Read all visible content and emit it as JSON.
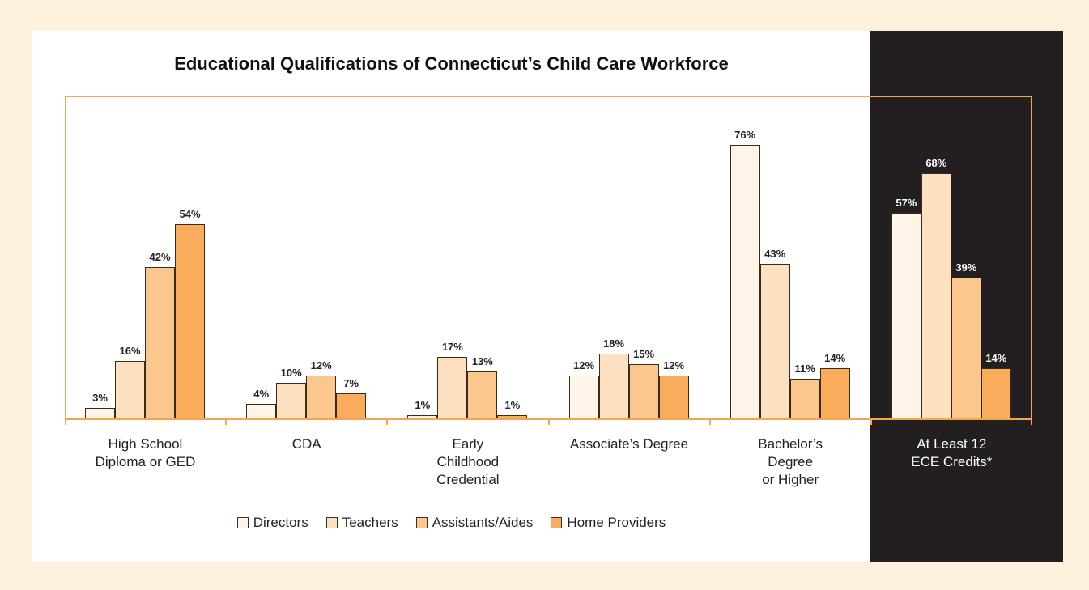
{
  "chart_data": {
    "type": "bar",
    "title": "Educational Qualifications of Connecticut’s Child Care Workforce",
    "categories": [
      "High School\nDiploma or GED",
      "CDA",
      "Early\nChildhood\nCredential",
      "Associate’s Degree",
      "Bachelor’s\nDegree\nor Higher",
      "At Least 12\nECE Credits*"
    ],
    "series": [
      {
        "name": "Directors",
        "color": "#fef4e8",
        "values": [
          3,
          4,
          1,
          12,
          76,
          57
        ],
        "value_labels": [
          "3%",
          "4%",
          "1%",
          "12%",
          "76%",
          "57%"
        ]
      },
      {
        "name": "Teachers",
        "color": "#fde0bf",
        "values": [
          16,
          10,
          17,
          18,
          43,
          68
        ],
        "value_labels": [
          "16%",
          "10%",
          "17%",
          "18%",
          "43%",
          "68%"
        ]
      },
      {
        "name": "Assistants/Aides",
        "color": "#fcc78c",
        "values": [
          42,
          12,
          13,
          15,
          11,
          39
        ],
        "value_labels": [
          "42%",
          "12%",
          "13%",
          "15%",
          "11%",
          "39%"
        ]
      },
      {
        "name": "Home Providers",
        "color": "#f9ad5c",
        "values": [
          54,
          7,
          1,
          12,
          14,
          14
        ],
        "value_labels": [
          "54%",
          "7%",
          "1%",
          "12%",
          "14%",
          "14%"
        ]
      }
    ]
  }
}
